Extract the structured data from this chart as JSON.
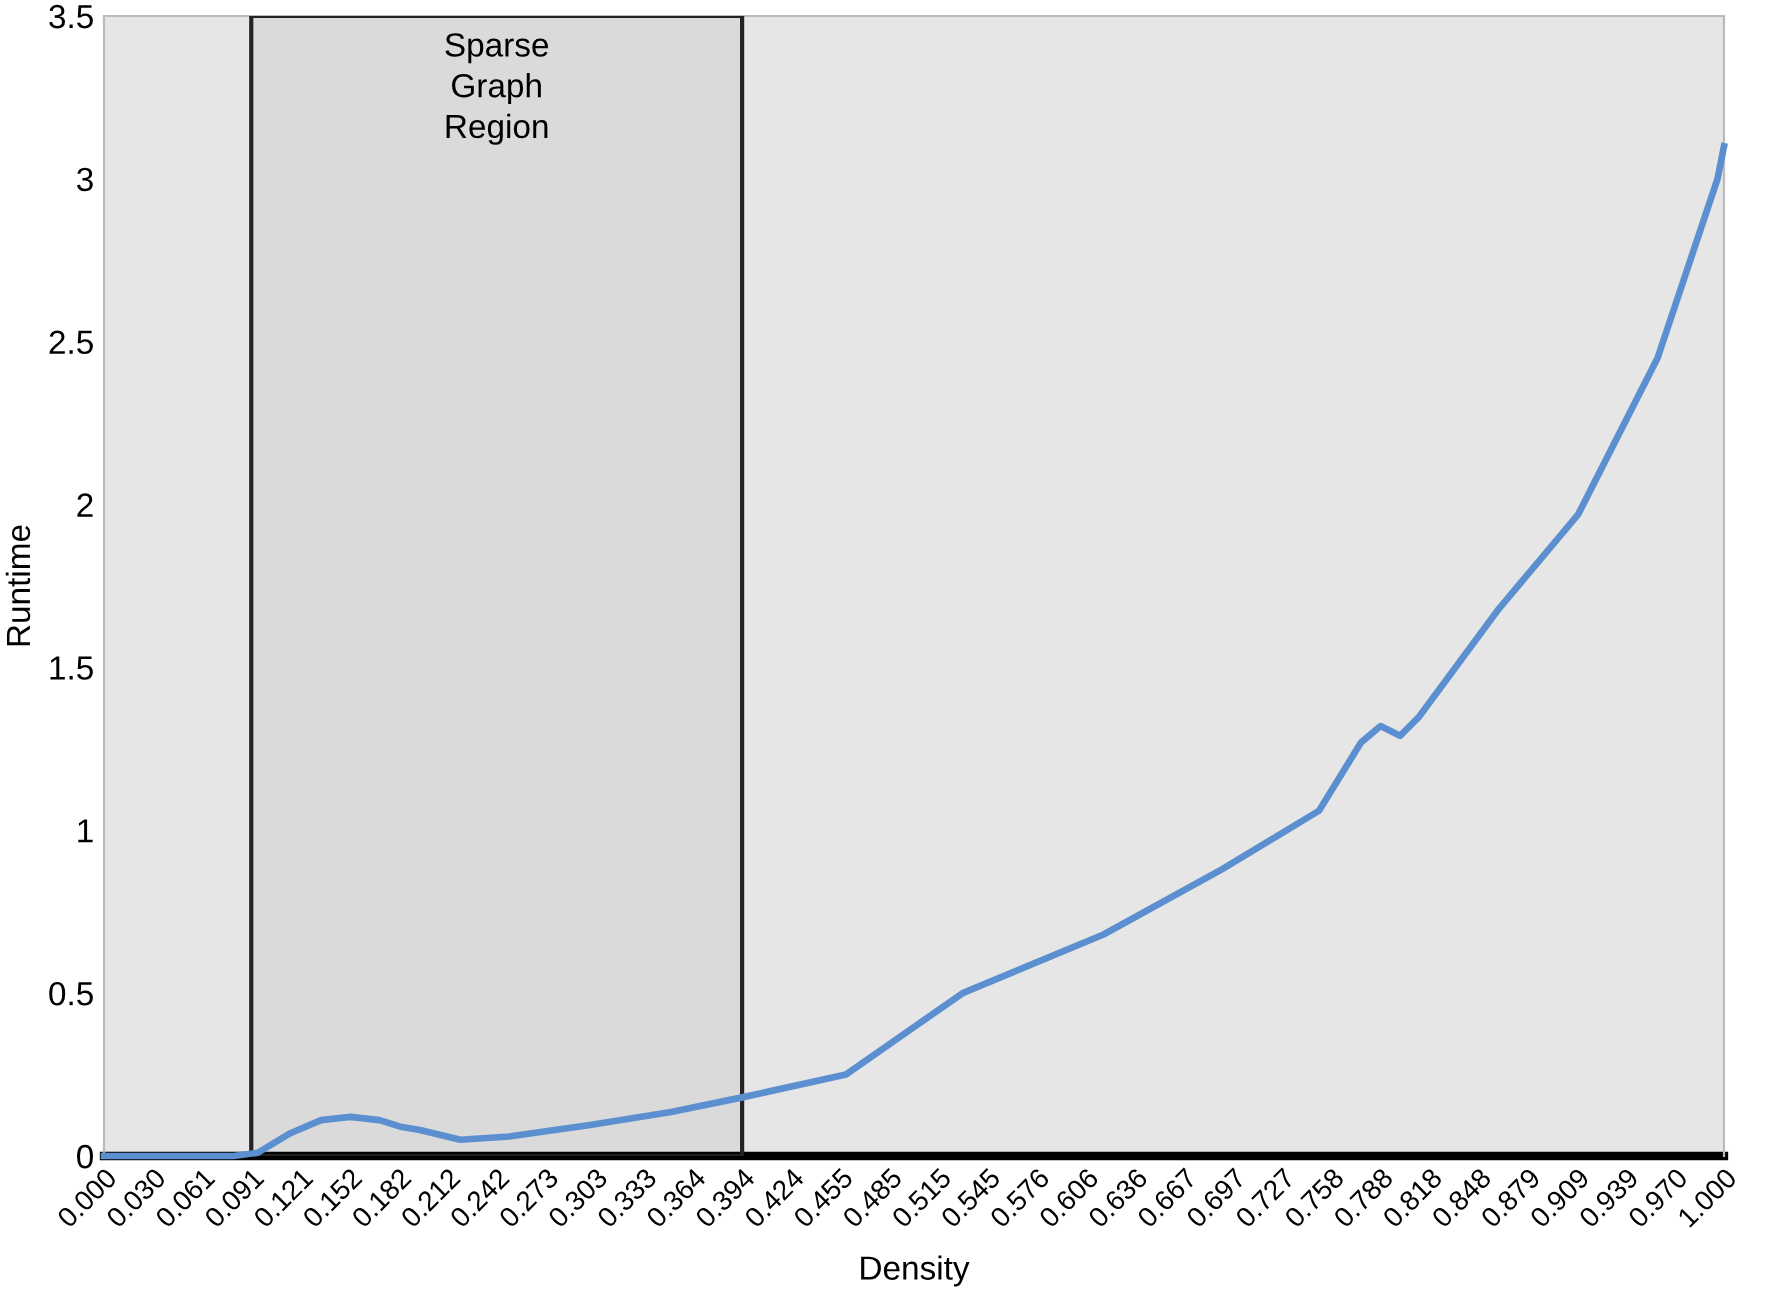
{
  "chart_data": {
    "type": "line",
    "xlabel": "Density",
    "ylabel": "Runtime",
    "x": [
      0,
      0.04,
      0.08,
      0.095,
      0.115,
      0.134,
      0.152,
      0.17,
      0.183,
      0.195,
      0.22,
      0.25,
      0.3,
      0.35,
      0.394,
      0.458,
      0.53,
      0.617,
      0.69,
      0.75,
      0.776,
      0.788,
      0.8,
      0.812,
      0.861,
      0.91,
      0.959,
      0.996,
      1.0
    ],
    "series": [
      {
        "color": "#5b8fd0",
        "values": [
          0,
          0,
          0,
          0.01,
          0.07,
          0.11,
          0.12,
          0.11,
          0.09,
          0.08,
          0.05,
          0.06,
          0.095,
          0.135,
          0.18,
          0.25,
          0.5,
          0.68,
          0.88,
          1.06,
          1.27,
          1.32,
          1.29,
          1.35,
          1.68,
          1.97,
          2.45,
          3.0,
          3.1
        ]
      }
    ],
    "xlim": [
      0,
      1
    ],
    "ylim": [
      0,
      3.5
    ],
    "xticks": [
      {
        "value": 0.0,
        "label": "0.000"
      },
      {
        "value": 0.0303,
        "label": "0.030"
      },
      {
        "value": 0.0606,
        "label": "0.061"
      },
      {
        "value": 0.0909,
        "label": "0.091"
      },
      {
        "value": 0.1212,
        "label": "0.121"
      },
      {
        "value": 0.1515,
        "label": "0.152"
      },
      {
        "value": 0.1818,
        "label": "0.182"
      },
      {
        "value": 0.2121,
        "label": "0.212"
      },
      {
        "value": 0.2424,
        "label": "0.242"
      },
      {
        "value": 0.2727,
        "label": "0.273"
      },
      {
        "value": 0.303,
        "label": "0.303"
      },
      {
        "value": 0.3333,
        "label": "0.333"
      },
      {
        "value": 0.3636,
        "label": "0.364"
      },
      {
        "value": 0.3939,
        "label": "0.394"
      },
      {
        "value": 0.4242,
        "label": "0.424"
      },
      {
        "value": 0.4545,
        "label": "0.455"
      },
      {
        "value": 0.4848,
        "label": "0.485"
      },
      {
        "value": 0.5152,
        "label": "0.515"
      },
      {
        "value": 0.5455,
        "label": "0.545"
      },
      {
        "value": 0.5758,
        "label": "0.576"
      },
      {
        "value": 0.6061,
        "label": "0.606"
      },
      {
        "value": 0.6364,
        "label": "0.636"
      },
      {
        "value": 0.6667,
        "label": "0.667"
      },
      {
        "value": 0.697,
        "label": "0.697"
      },
      {
        "value": 0.7273,
        "label": "0.727"
      },
      {
        "value": 0.7576,
        "label": "0.758"
      },
      {
        "value": 0.7879,
        "label": "0.788"
      },
      {
        "value": 0.8182,
        "label": "0.818"
      },
      {
        "value": 0.8485,
        "label": "0.848"
      },
      {
        "value": 0.8788,
        "label": "0.879"
      },
      {
        "value": 0.9091,
        "label": "0.909"
      },
      {
        "value": 0.9394,
        "label": "0.939"
      },
      {
        "value": 0.9697,
        "label": "0.970"
      },
      {
        "value": 1.0,
        "label": "1.000"
      }
    ],
    "yticks": [
      0,
      0.5,
      1,
      1.5,
      2,
      2.5,
      3,
      3.5
    ],
    "bands": [
      {
        "axis": "x",
        "from": 0.0909,
        "to": 0.3939,
        "label": "Sparse\nGraph\nRegion",
        "color": "#222222"
      }
    ],
    "grid": false,
    "legend": false,
    "marker": "none",
    "line_style": "solid"
  }
}
